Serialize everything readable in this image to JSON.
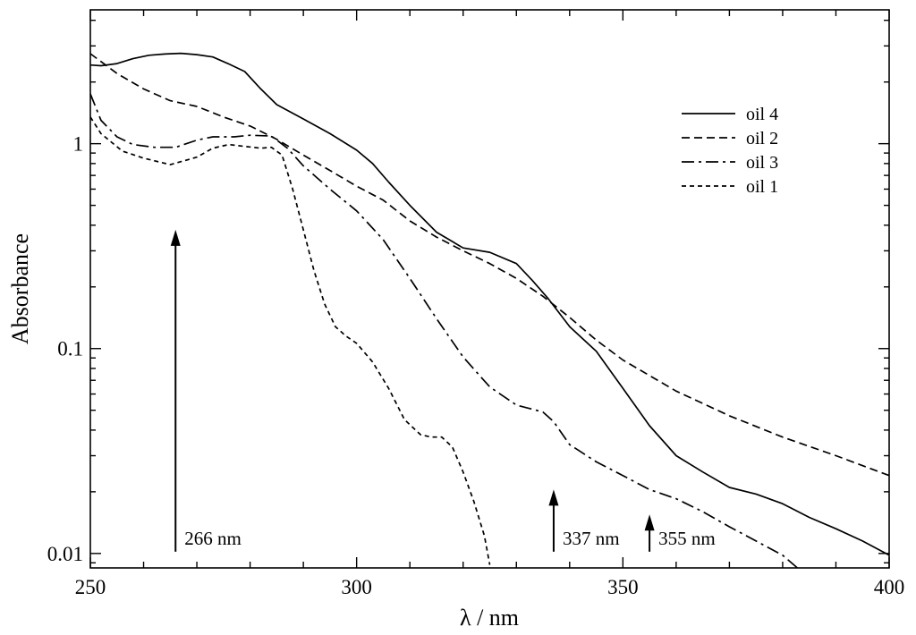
{
  "chart_data": {
    "type": "line",
    "title": "",
    "xlabel": "λ / nm",
    "ylabel": "Absorbance",
    "xlim": [
      250,
      400
    ],
    "ylim": [
      0.0085,
      4.5
    ],
    "yscale": "log",
    "grid": false,
    "legend_position": "top-right",
    "x_ticks": [
      {
        "value": 250,
        "label": "250"
      },
      {
        "value": 300,
        "label": "300"
      },
      {
        "value": 350,
        "label": "350"
      },
      {
        "value": 400,
        "label": "400"
      }
    ],
    "y_ticks": [
      {
        "value": 0.01,
        "label": "0.01"
      },
      {
        "value": 0.1,
        "label": "0.1"
      },
      {
        "value": 1,
        "label": "1"
      }
    ],
    "series": [
      {
        "name": "oil 4",
        "dash": "solid",
        "x": [
          250,
          252,
          255,
          258,
          261,
          264,
          267,
          270,
          273,
          276,
          279,
          282,
          285,
          290,
          295,
          300,
          303,
          306,
          310,
          315,
          320,
          325,
          330,
          333,
          336,
          340,
          345,
          350,
          355,
          360,
          365,
          370,
          375,
          380,
          385,
          390,
          395,
          400
        ],
        "y": [
          2.42,
          2.4,
          2.46,
          2.6,
          2.7,
          2.74,
          2.76,
          2.72,
          2.65,
          2.45,
          2.25,
          1.85,
          1.55,
          1.32,
          1.12,
          0.93,
          0.8,
          0.65,
          0.5,
          0.37,
          0.31,
          0.295,
          0.26,
          0.215,
          0.175,
          0.128,
          0.097,
          0.064,
          0.042,
          0.03,
          0.025,
          0.021,
          0.0195,
          0.0175,
          0.015,
          0.0132,
          0.0115,
          0.0098
        ]
      },
      {
        "name": "oil 2",
        "dash": "dash",
        "x": [
          250,
          255,
          260,
          265,
          270,
          275,
          280,
          285,
          290,
          295,
          300,
          305,
          310,
          315,
          320,
          325,
          330,
          335,
          340,
          345,
          350,
          360,
          370,
          380,
          390,
          400
        ],
        "y": [
          2.75,
          2.2,
          1.85,
          1.62,
          1.52,
          1.35,
          1.22,
          1.05,
          0.88,
          0.74,
          0.62,
          0.53,
          0.42,
          0.35,
          0.3,
          0.26,
          0.22,
          0.18,
          0.142,
          0.11,
          0.088,
          0.062,
          0.047,
          0.037,
          0.03,
          0.024
        ]
      },
      {
        "name": "oil 3",
        "dash": "dashdot",
        "x": [
          250,
          252,
          255,
          258,
          262,
          266,
          270,
          273,
          277,
          280,
          284,
          287,
          290,
          295,
          300,
          305,
          310,
          315,
          320,
          325,
          330,
          335,
          337,
          340,
          345,
          350,
          355,
          360,
          365,
          370,
          375,
          380,
          383
        ],
        "y": [
          1.75,
          1.3,
          1.08,
          0.99,
          0.96,
          0.96,
          1.04,
          1.08,
          1.08,
          1.1,
          1.09,
          0.95,
          0.78,
          0.6,
          0.47,
          0.34,
          0.22,
          0.14,
          0.091,
          0.065,
          0.053,
          0.049,
          0.044,
          0.034,
          0.028,
          0.024,
          0.0205,
          0.0185,
          0.016,
          0.0135,
          0.0115,
          0.0098,
          0.0084
        ]
      },
      {
        "name": "oil 1",
        "dash": "shortdash",
        "x": [
          250,
          252,
          256,
          260,
          265,
          270,
          273,
          276,
          279,
          282,
          284,
          286,
          288,
          290,
          292,
          294,
          296,
          298,
          300,
          303,
          306,
          309,
          312,
          314,
          316,
          318,
          320,
          322,
          324,
          325
        ],
        "y": [
          1.35,
          1.12,
          0.92,
          0.85,
          0.79,
          0.86,
          0.95,
          0.99,
          0.97,
          0.95,
          0.96,
          0.88,
          0.6,
          0.38,
          0.24,
          0.165,
          0.128,
          0.115,
          0.106,
          0.086,
          0.064,
          0.045,
          0.038,
          0.037,
          0.037,
          0.033,
          0.025,
          0.018,
          0.0122,
          0.0088
        ]
      }
    ],
    "annotations": [
      {
        "text": "266 nm",
        "x": 266,
        "y_base": 0.0102,
        "y_tip": 0.38
      },
      {
        "text": "337 nm",
        "x": 337,
        "y_base": 0.0102,
        "y_tip": 0.0205
      },
      {
        "text": "355 nm",
        "x": 355,
        "y_base": 0.0102,
        "y_tip": 0.0155
      }
    ]
  }
}
